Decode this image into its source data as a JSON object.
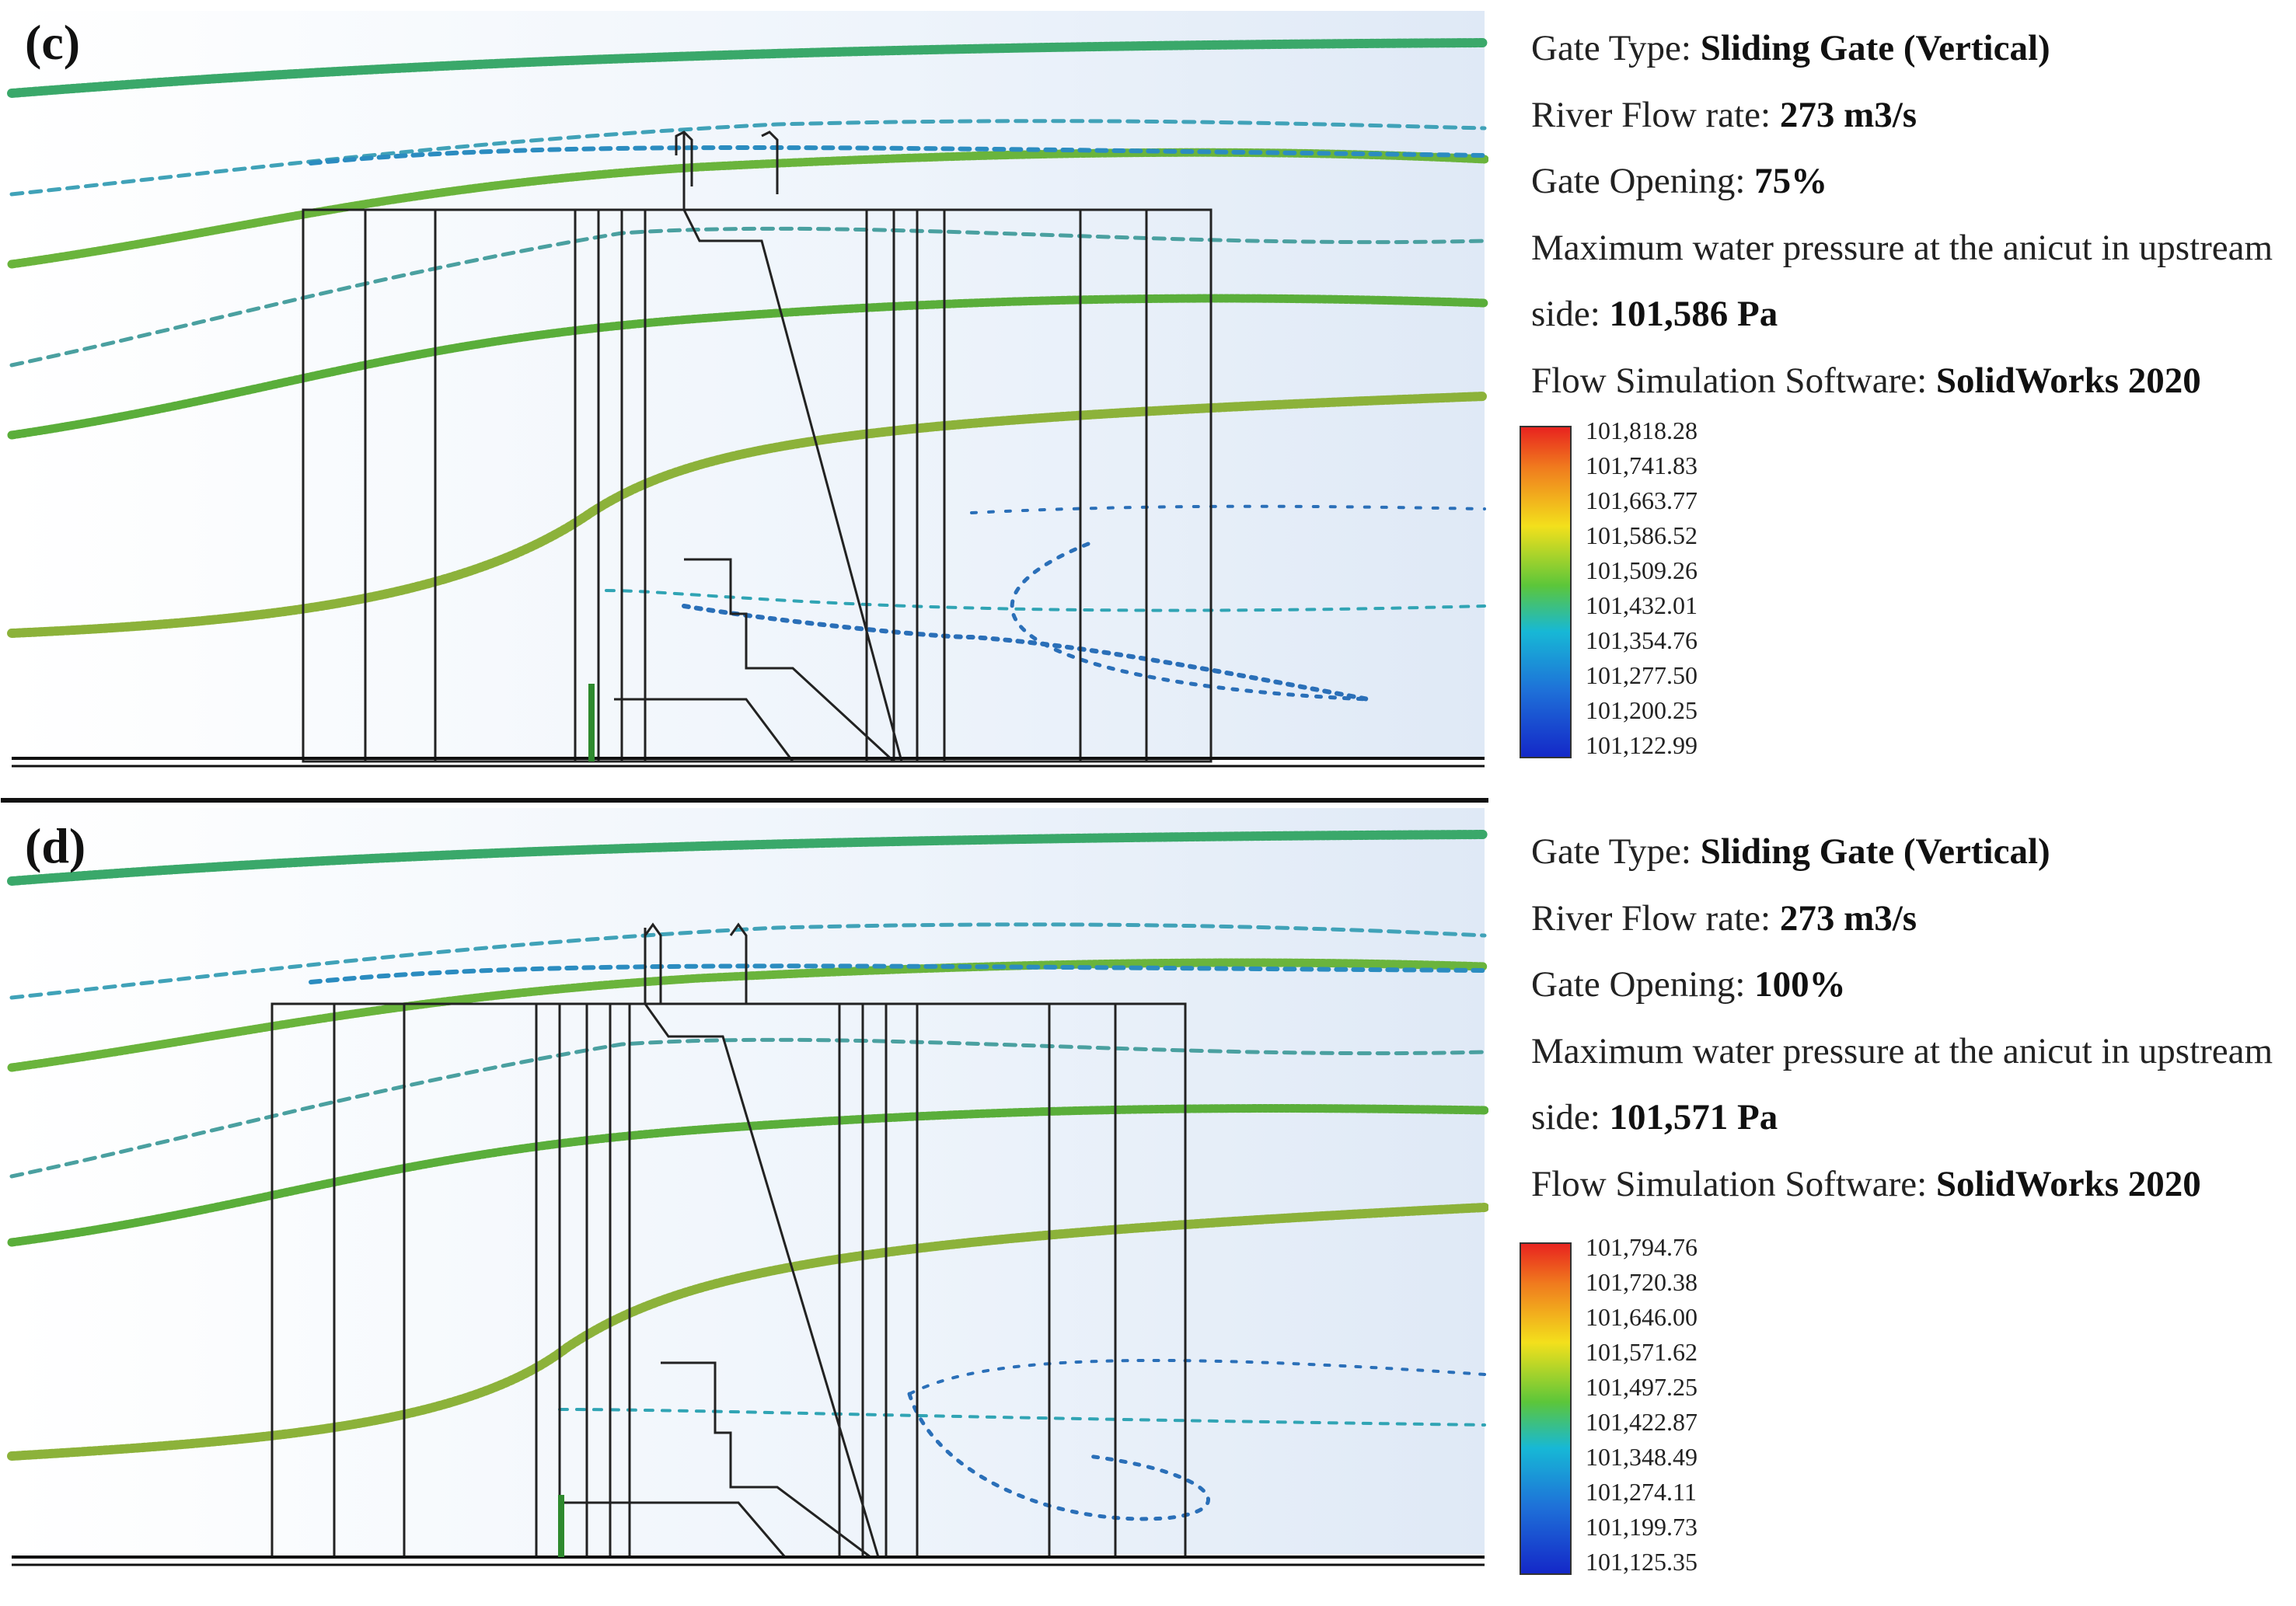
{
  "panels": [
    {
      "id": "c",
      "label": "(c)",
      "gate_type_label": "Gate Type:",
      "gate_type_value": "Sliding Gate (Vertical)",
      "flow_rate_label": "River Flow rate:",
      "flow_rate_value": "273 m3/s",
      "gate_opening_label": "Gate Opening:",
      "gate_opening_value": "75%",
      "pressure_label_line1": "Maximum water pressure at the anicut in upstream",
      "pressure_label_line2": "side:",
      "pressure_value": "101,586 Pa",
      "software_label": "Flow Simulation Software:",
      "software_value": "SolidWorks 2020",
      "legend": [
        "101,818.28",
        "101,741.83",
        "101,663.77",
        "101,586.52",
        "101,509.26",
        "101,432.01",
        "101,354.76",
        "101,277.50",
        "101,200.25",
        "101,122.99"
      ],
      "colors": {
        "top": "#e8231f",
        "mid": "#f3e01c",
        "low": "#17b8d6",
        "bottom": "#1428c8"
      }
    },
    {
      "id": "d",
      "label": "(d)",
      "gate_type_label": "Gate Type:",
      "gate_type_value": "Sliding Gate (Vertical)",
      "flow_rate_label": "River Flow rate:",
      "flow_rate_value": "273 m3/s",
      "gate_opening_label": "Gate Opening:",
      "gate_opening_value": "100%",
      "pressure_label_line1": "Maximum water pressure at the anicut in upstream",
      "pressure_label_line2": "side:",
      "pressure_value": "101,571 Pa",
      "software_label": "Flow Simulation Software:",
      "software_value": "SolidWorks 2020",
      "legend": [
        "101,794.76",
        "101,720.38",
        "101,646.00",
        "101,571.62",
        "101,497.25",
        "101,422.87",
        "101,348.49",
        "101,274.11",
        "101,199.73",
        "101,125.35"
      ],
      "colors": {
        "top": "#e8231f",
        "mid": "#f3e01c",
        "low": "#17b8d6",
        "bottom": "#1428c8"
      }
    }
  ]
}
